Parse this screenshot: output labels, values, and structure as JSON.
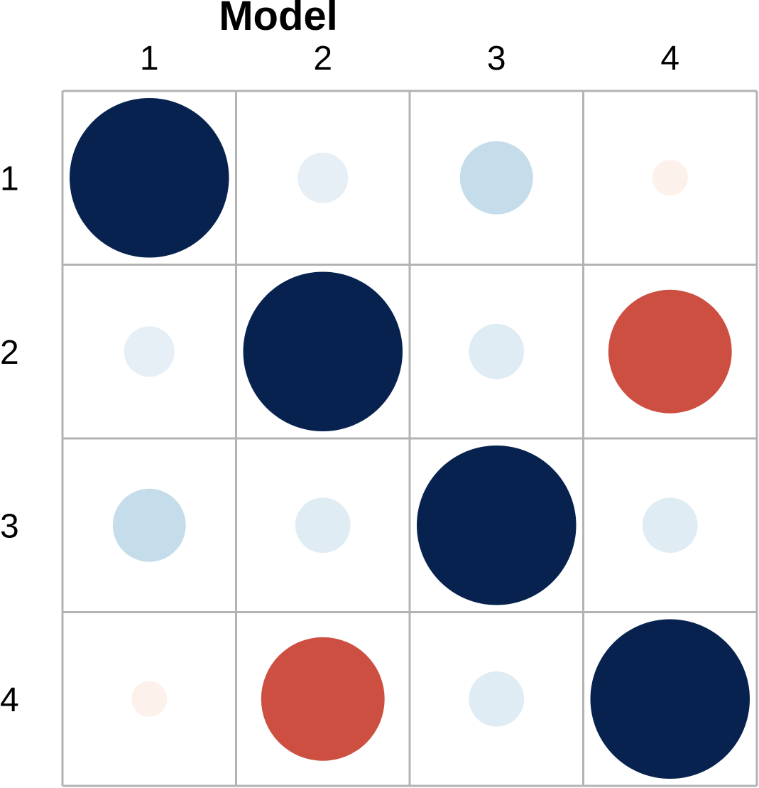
{
  "chart_data": {
    "type": "heatmap",
    "subtype": "correlation-circles",
    "title": "Model",
    "xlabel": "",
    "ylabel": "",
    "x_tick_labels": [
      "1",
      "2",
      "3",
      "4"
    ],
    "y_tick_labels": [
      "1",
      "2",
      "3",
      "4"
    ],
    "value_range": [
      -1,
      1
    ],
    "grid": true,
    "legend": "none",
    "color_scale": {
      "negative": "#b2182b",
      "neutral": "#ffffff",
      "positive": "#053061"
    },
    "matrix": [
      [
        1.0,
        0.1,
        0.21,
        -0.05
      ],
      [
        0.1,
        1.0,
        0.12,
        -0.6
      ],
      [
        0.21,
        0.12,
        1.0,
        0.12
      ],
      [
        -0.05,
        -0.6,
        0.12,
        1.0
      ]
    ],
    "colors": [
      [
        "#08224f",
        "#e6eef6",
        "#c5dcea",
        "#fdf1ec"
      ],
      [
        "#e6eef6",
        "#08224f",
        "#dfecf4",
        "#cd4f41"
      ],
      [
        "#c5dcea",
        "#dfecf4",
        "#08224f",
        "#dfecf4"
      ],
      [
        "#fdf1ec",
        "#cd4f41",
        "#dfecf4",
        "#08224f"
      ]
    ]
  }
}
